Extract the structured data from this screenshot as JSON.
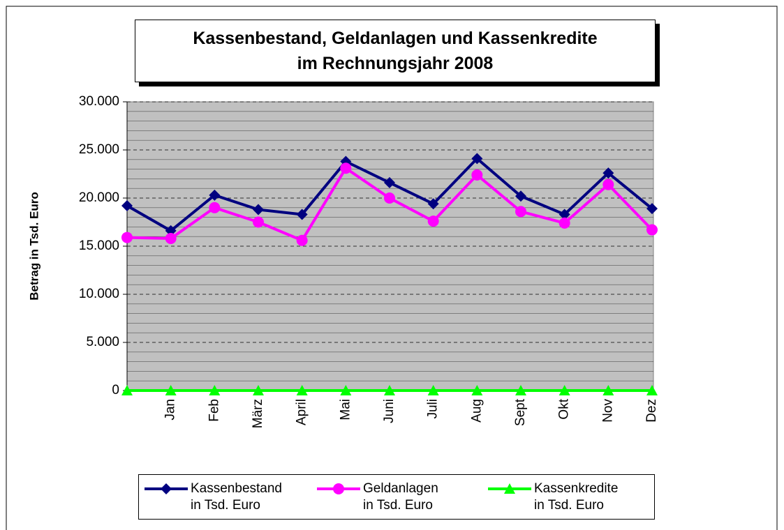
{
  "chart_data": {
    "type": "line",
    "title": "Kassenbestand, Geldanlagen und Kassenkredite\nim Rechnungsjahr 2008",
    "y_label": "Betrag in Tsd. Euro",
    "categories": [
      null,
      "Jan",
      "Feb",
      "März",
      "April",
      "Mai",
      "Juni",
      "Juli",
      "Aug",
      "Sept",
      "Okt",
      "Nov",
      "Dez"
    ],
    "series": [
      {
        "name": "Kassenbestand\nin Tsd. Euro",
        "color": "#000080",
        "marker": "diamond",
        "values": [
          19200,
          16600,
          20300,
          18800,
          18300,
          23800,
          21600,
          19400,
          24100,
          20200,
          18300,
          22600,
          18900
        ]
      },
      {
        "name": "Geldanlagen\nin Tsd. Euro",
        "color": "#ff00ff",
        "marker": "circle",
        "values": [
          15900,
          15800,
          19000,
          17500,
          15600,
          23100,
          20000,
          17600,
          22400,
          18600,
          17400,
          21400,
          16700
        ]
      },
      {
        "name": "Kassenkredite\nin Tsd. Euro",
        "color": "#00ff00",
        "marker": "triangle",
        "values": [
          0,
          0,
          0,
          0,
          0,
          0,
          0,
          0,
          0,
          0,
          0,
          0,
          0
        ]
      }
    ],
    "ylim": [
      0,
      30000
    ],
    "yticks": [
      0,
      {
        "value": 5000,
        "label": "5.000"
      },
      {
        "value": 10000,
        "label": "10.000"
      },
      {
        "value": 15000,
        "label": "15.000"
      },
      {
        "value": 20000,
        "label": "20.000"
      },
      {
        "value": 25000,
        "label": "25.000"
      },
      {
        "value": 30000,
        "label": "30.000"
      }
    ],
    "yminorticks": [
      1000,
      2000,
      3000,
      4000,
      6000,
      7000,
      8000,
      9000,
      11000,
      12000,
      13000,
      14000,
      16000,
      17000,
      18000,
      19000,
      21000,
      22000,
      23000,
      24000,
      26000,
      27000,
      28000,
      29000
    ],
    "grid": true,
    "plot_background": "#c0c0c0",
    "legend": "bottom"
  }
}
